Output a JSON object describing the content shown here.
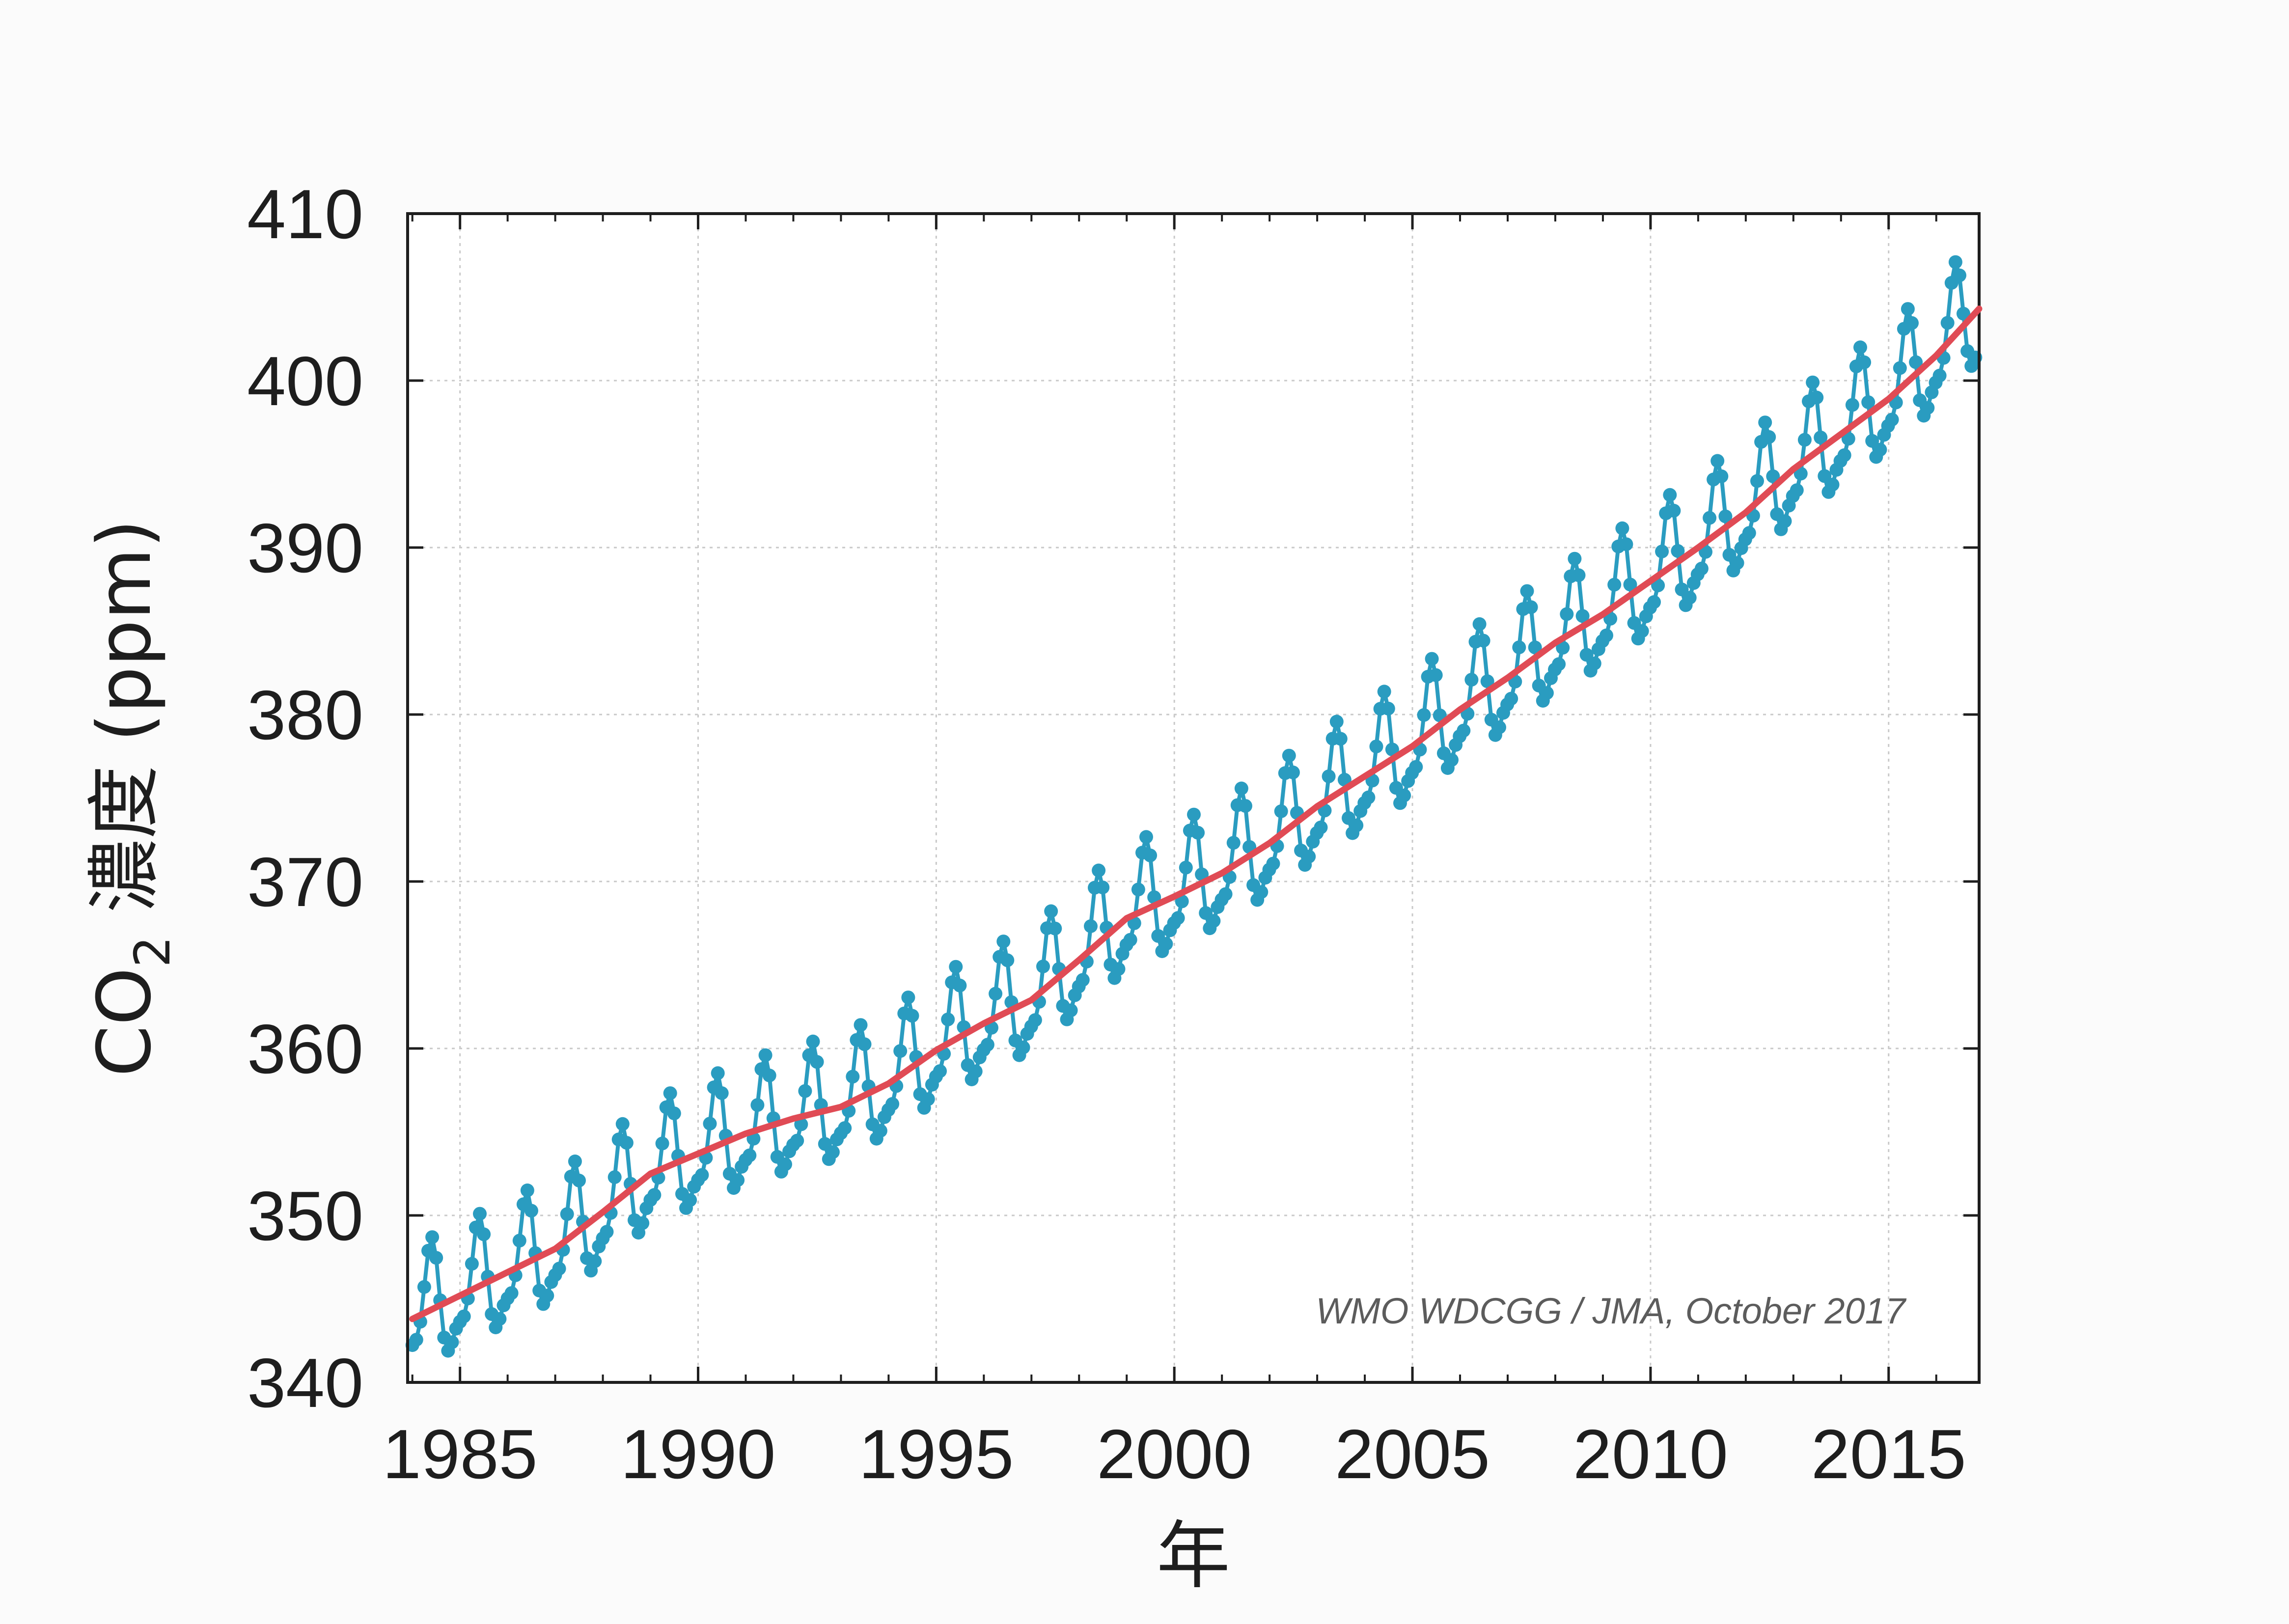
{
  "chart_data": {
    "type": "line",
    "title": "",
    "xlabel": "年",
    "ylabel": "CO2 濃度 (ppm)",
    "ylabel_parts": {
      "main": "CO",
      "subscript": "2",
      "rest": " 濃度 (ppm)"
    },
    "annotation": "WMO WDCGG / JMA, October 2017",
    "xlim": [
      1983.9,
      2016.9
    ],
    "ylim": [
      340,
      410
    ],
    "x_ticks": [
      1985,
      1990,
      1995,
      2000,
      2005,
      2010,
      2015
    ],
    "x_tick_labels": [
      "1985",
      "1990",
      "1995",
      "2000",
      "2005",
      "2010",
      "2015"
    ],
    "y_ticks": [
      340,
      350,
      360,
      370,
      380,
      390,
      400,
      410
    ],
    "y_tick_labels": [
      "340",
      "350",
      "360",
      "370",
      "380",
      "390",
      "400",
      "410"
    ],
    "grid": true,
    "legend": "none",
    "series": [
      {
        "style": "markers+line",
        "color": "#2a9cc0",
        "marker_step_years": 0.0833,
        "trend_years": [
          1984.0,
          1985.0,
          1986.0,
          1987.0,
          1988.0,
          1989.0,
          1990.0,
          1991.0,
          1992.0,
          1993.0,
          1994.0,
          1995.0,
          1996.0,
          1997.0,
          1998.0,
          1999.0,
          2000.0,
          2001.0,
          2002.0,
          2003.0,
          2004.0,
          2005.0,
          2006.0,
          2007.0,
          2008.0,
          2009.0,
          2010.0,
          2011.0,
          2012.0,
          2013.0,
          2014.0,
          2015.0,
          2016.0,
          2016.9
        ],
        "trend_values": [
          343.8,
          345.2,
          346.6,
          348.0,
          350.2,
          352.5,
          353.7,
          354.9,
          355.8,
          356.5,
          357.9,
          359.9,
          361.5,
          362.9,
          365.3,
          367.8,
          369.1,
          370.5,
          372.3,
          374.5,
          376.3,
          378.1,
          380.3,
          382.2,
          384.3,
          386.0,
          388.0,
          390.0,
          392.1,
          394.7,
          396.8,
          398.9,
          401.5,
          404.3
        ],
        "seasonal_amplitude_ppm": 4.1,
        "seasonal_peak_month": 4.5
      },
      {
        "style": "line",
        "color": "#e04b55",
        "x": [
          1984.0,
          1985.0,
          1986.0,
          1987.0,
          1988.0,
          1989.0,
          1990.0,
          1991.0,
          1992.0,
          1993.0,
          1994.0,
          1995.0,
          1996.0,
          1997.0,
          1998.0,
          1999.0,
          2000.0,
          2001.0,
          2002.0,
          2003.0,
          2004.0,
          2005.0,
          2006.0,
          2007.0,
          2008.0,
          2009.0,
          2010.0,
          2011.0,
          2012.0,
          2013.0,
          2014.0,
          2015.0,
          2016.0,
          2016.9
        ],
        "y": [
          343.8,
          345.2,
          346.6,
          348.0,
          350.2,
          352.5,
          353.7,
          354.9,
          355.8,
          356.5,
          357.9,
          359.9,
          361.5,
          362.9,
          365.3,
          367.8,
          369.1,
          370.5,
          372.3,
          374.5,
          376.3,
          378.1,
          380.3,
          382.2,
          384.3,
          386.0,
          388.0,
          390.0,
          392.1,
          394.7,
          396.8,
          398.9,
          401.5,
          404.3
        ]
      }
    ]
  }
}
